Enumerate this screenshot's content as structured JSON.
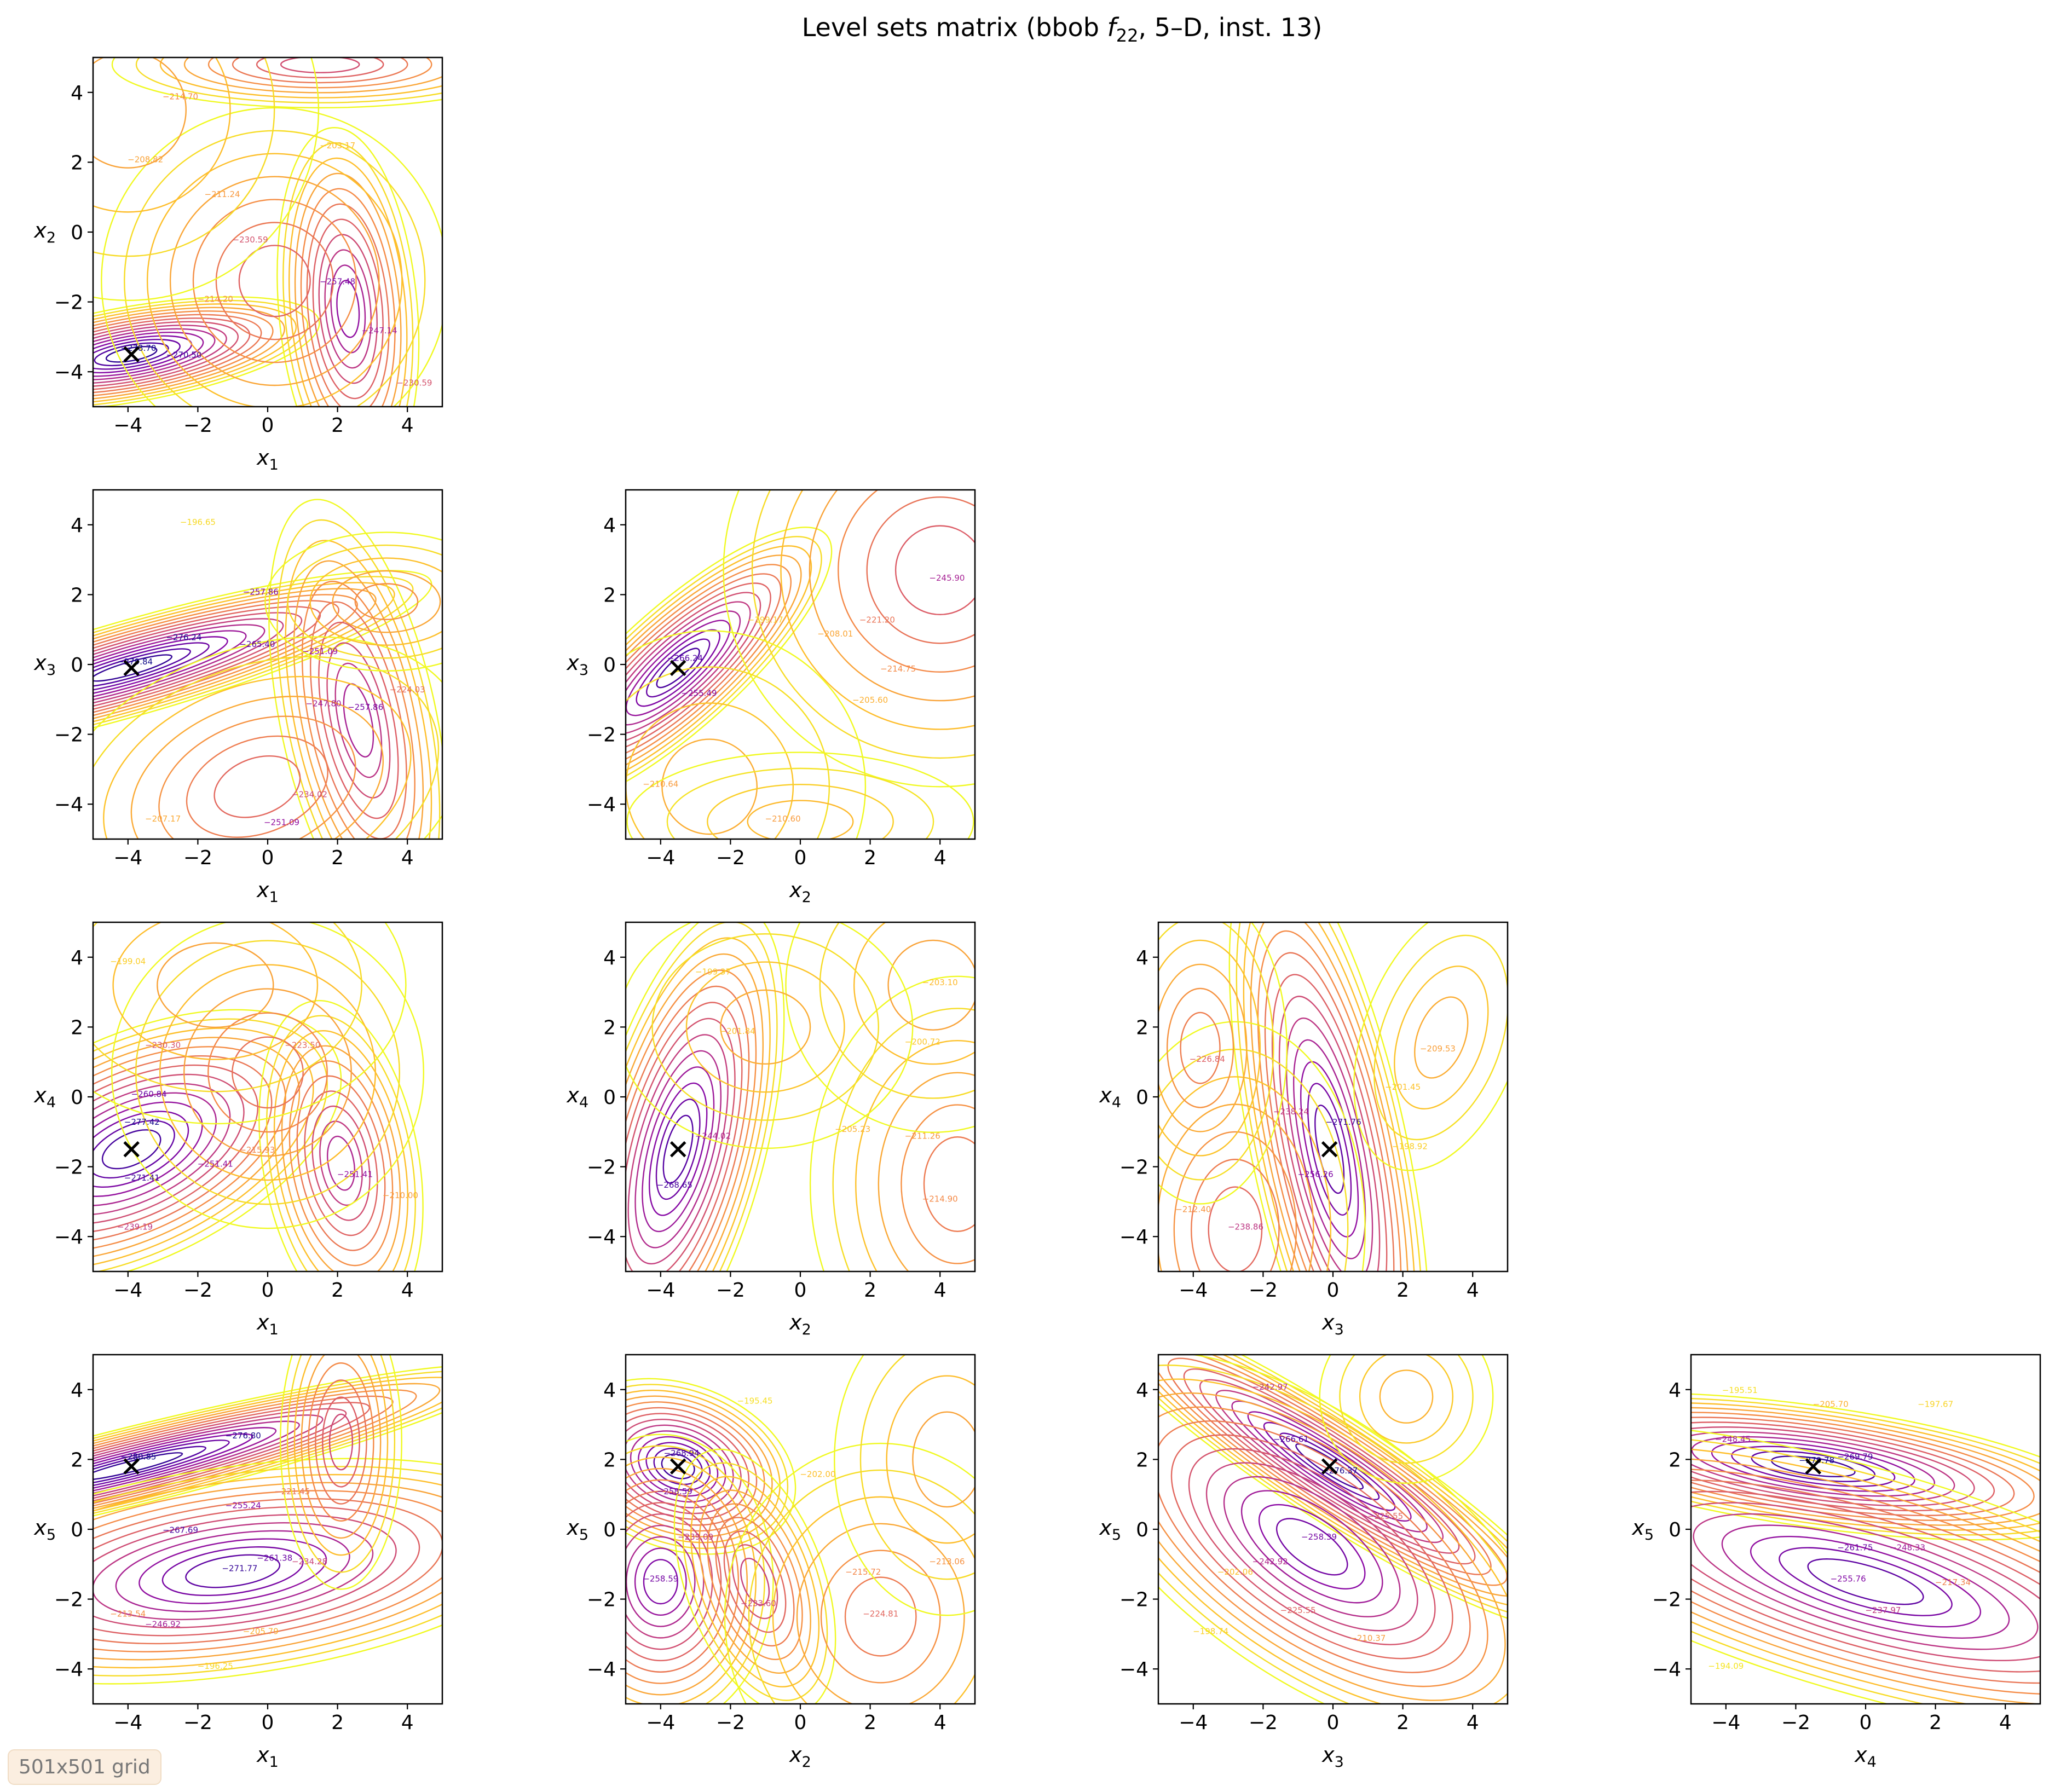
{
  "figure": {
    "title": "Level sets matrix (bbob f22, 5–D, inst. 13)",
    "title_prefix": "Level sets matrix (bbob ",
    "title_f": "f",
    "title_sub": "22",
    "title_suffix": ", 5–D, inst. 13)",
    "grid_note": "501x501 grid"
  },
  "chart_data": {
    "type": "contour",
    "colormap": "plasma",
    "axis_range": [
      -5,
      5
    ],
    "ticks": [
      -4,
      -2,
      0,
      2,
      4
    ],
    "tick_labels": [
      "−4",
      "−2",
      "0",
      "2",
      "4"
    ],
    "variables": [
      "x1",
      "x2",
      "x3",
      "x4",
      "x5"
    ],
    "optimum": [
      -3.9,
      -3.5,
      -0.1,
      -1.5,
      1.8
    ],
    "level_range": [
      -279,
      -190
    ],
    "panels": [
      {
        "x": "x1",
        "y": "x2",
        "xlabel": "x",
        "xsub": "1",
        "ylabel": "x",
        "ysub": "2",
        "peaks": [
          {
            "cx": -3.9,
            "cy": -3.5,
            "sx": 2.2,
            "sy": 0.55,
            "rot": 10,
            "depth": 89
          },
          {
            "cx": 2.3,
            "cy": -2.2,
            "sx": 0.8,
            "sy": 2.1,
            "rot": 5,
            "depth": 68
          },
          {
            "cx": 0.2,
            "cy": -1.4,
            "sx": 2.0,
            "sy": 2.0,
            "rot": 0,
            "depth": 42
          },
          {
            "cx": 1.5,
            "cy": 4.8,
            "sx": 2.4,
            "sy": 0.5,
            "rot": 0,
            "depth": 48
          },
          {
            "cx": -4.0,
            "cy": 3.5,
            "sx": 2.2,
            "sy": 2.2,
            "rot": 0,
            "depth": 25
          }
        ],
        "labels": [
          {
            "x": -3.7,
            "y": -3.4,
            "t": "−278.70"
          },
          {
            "x": -2.4,
            "y": -3.6,
            "t": "−270.50"
          },
          {
            "x": 2.0,
            "y": -1.5,
            "t": "−257.48"
          },
          {
            "x": 3.2,
            "y": -2.9,
            "t": "−247.14"
          },
          {
            "x": -0.5,
            "y": -0.3,
            "t": "−230.59"
          },
          {
            "x": -1.3,
            "y": 1.0,
            "t": "−211.24"
          },
          {
            "x": -3.5,
            "y": 2.0,
            "t": "−208.82"
          },
          {
            "x": -2.5,
            "y": 3.8,
            "t": "−214.70"
          },
          {
            "x": 2.0,
            "y": 2.4,
            "t": "−203.17"
          },
          {
            "x": -1.5,
            "y": -2.0,
            "t": "−214.20"
          },
          {
            "x": 4.2,
            "y": -4.4,
            "t": "−230.59"
          }
        ]
      },
      {
        "x": "x1",
        "y": "x3",
        "xlabel": "x",
        "xsub": "1",
        "ylabel": "x",
        "ysub": "3",
        "peaks": [
          {
            "cx": -3.9,
            "cy": -0.1,
            "sx": 3.6,
            "sy": 0.55,
            "rot": 16,
            "depth": 88
          },
          {
            "cx": 2.6,
            "cy": -1.6,
            "sx": 0.9,
            "sy": 2.6,
            "rot": 12,
            "depth": 62
          },
          {
            "cx": -0.3,
            "cy": -3.5,
            "sx": 2.5,
            "sy": 1.6,
            "rot": 20,
            "depth": 40
          },
          {
            "cx": 3.4,
            "cy": 1.8,
            "sx": 1.4,
            "sy": 0.8,
            "rot": 0,
            "depth": 30
          }
        ],
        "labels": [
          {
            "x": -3.8,
            "y": 0.0,
            "t": "−279.84"
          },
          {
            "x": -2.4,
            "y": 0.7,
            "t": "−276.24"
          },
          {
            "x": -0.3,
            "y": 0.5,
            "t": "−265.40"
          },
          {
            "x": -0.2,
            "y": 2.0,
            "t": "−257.86"
          },
          {
            "x": 1.5,
            "y": 0.3,
            "t": "−251.09"
          },
          {
            "x": 1.6,
            "y": -1.2,
            "t": "−247.80"
          },
          {
            "x": 2.8,
            "y": -1.3,
            "t": "−257.86"
          },
          {
            "x": 4.0,
            "y": -0.8,
            "t": "−224.03"
          },
          {
            "x": -3.0,
            "y": -4.5,
            "t": "−207.17"
          },
          {
            "x": 1.2,
            "y": -3.8,
            "t": "−234.02"
          },
          {
            "x": 0.4,
            "y": -4.6,
            "t": "−251.09"
          },
          {
            "x": -2.0,
            "y": 4.0,
            "t": "−196.65"
          }
        ]
      },
      {
        "x": "x2",
        "y": "x3",
        "xlabel": "x",
        "xsub": "2",
        "ylabel": "x",
        "ysub": "3",
        "peaks": [
          {
            "cx": -3.5,
            "cy": -0.1,
            "sx": 0.7,
            "sy": 2.3,
            "rot": -48,
            "depth": 84
          },
          {
            "cx": 4.0,
            "cy": 2.7,
            "sx": 2.5,
            "sy": 2.5,
            "rot": 0,
            "depth": 44
          },
          {
            "cx": -2.6,
            "cy": -3.5,
            "sx": 1.8,
            "sy": 1.8,
            "rot": 0,
            "depth": 22
          },
          {
            "cx": 0.0,
            "cy": -4.5,
            "sx": 2.0,
            "sy": 0.8,
            "rot": 0,
            "depth": 18
          }
        ],
        "labels": [
          {
            "x": -3.3,
            "y": 0.1,
            "t": "−266.24"
          },
          {
            "x": -2.9,
            "y": -0.9,
            "t": "−255.49"
          },
          {
            "x": 4.2,
            "y": 2.4,
            "t": "−245.90"
          },
          {
            "x": 2.2,
            "y": 1.2,
            "t": "−221.20"
          },
          {
            "x": 2.8,
            "y": -0.2,
            "t": "−214.75"
          },
          {
            "x": 1.0,
            "y": 0.8,
            "t": "−208.01"
          },
          {
            "x": -1.0,
            "y": 1.2,
            "t": "−199.17"
          },
          {
            "x": -4.0,
            "y": -3.5,
            "t": "−210.64"
          },
          {
            "x": 2.0,
            "y": -1.1,
            "t": "−205.60"
          },
          {
            "x": -0.5,
            "y": -4.5,
            "t": "−210.60"
          }
        ]
      },
      {
        "x": "x1",
        "y": "x4",
        "xlabel": "x",
        "xsub": "1",
        "ylabel": "x",
        "ysub": "4",
        "peaks": [
          {
            "cx": -3.9,
            "cy": -1.5,
            "sx": 2.6,
            "sy": 1.3,
            "rot": 25,
            "depth": 85
          },
          {
            "cx": 2.1,
            "cy": -1.9,
            "sx": 0.9,
            "sy": 1.9,
            "rot": 10,
            "depth": 60
          },
          {
            "cx": 0.0,
            "cy": 0.7,
            "sx": 1.8,
            "sy": 1.8,
            "rot": 0,
            "depth": 38
          },
          {
            "cx": -1.5,
            "cy": 3.2,
            "sx": 2.2,
            "sy": 1.6,
            "rot": 0,
            "depth": 25
          }
        ],
        "labels": [
          {
            "x": -3.6,
            "y": -0.8,
            "t": "−277.42"
          },
          {
            "x": -3.6,
            "y": -2.4,
            "t": "−271.41"
          },
          {
            "x": -3.4,
            "y": 0.0,
            "t": "−260.84"
          },
          {
            "x": -1.5,
            "y": -2.0,
            "t": "−251.41"
          },
          {
            "x": 2.5,
            "y": -2.3,
            "t": "−251.41"
          },
          {
            "x": -3.0,
            "y": 1.4,
            "t": "−230.30"
          },
          {
            "x": 1.0,
            "y": 1.4,
            "t": "−223.50"
          },
          {
            "x": -0.3,
            "y": -1.6,
            "t": "−215.93"
          },
          {
            "x": -4.0,
            "y": 3.8,
            "t": "−199.04"
          },
          {
            "x": -3.8,
            "y": -3.8,
            "t": "−239.19"
          },
          {
            "x": 3.8,
            "y": -2.9,
            "t": "−210.00"
          }
        ]
      },
      {
        "x": "x2",
        "y": "x4",
        "xlabel": "x",
        "xsub": "2",
        "ylabel": "x",
        "ysub": "4",
        "peaks": [
          {
            "cx": -3.5,
            "cy": -1.5,
            "sx": 1.0,
            "sy": 2.9,
            "rot": -15,
            "depth": 82
          },
          {
            "cx": 4.5,
            "cy": -2.5,
            "sx": 1.7,
            "sy": 2.4,
            "rot": 0,
            "depth": 35
          },
          {
            "cx": 3.8,
            "cy": 3.2,
            "sx": 1.7,
            "sy": 1.7,
            "rot": 0,
            "depth": 25
          },
          {
            "cx": -1.0,
            "cy": 2.0,
            "sx": 1.7,
            "sy": 1.4,
            "rot": 0,
            "depth": 22
          }
        ],
        "labels": [
          {
            "x": -3.6,
            "y": -2.6,
            "t": "−268.65"
          },
          {
            "x": -2.5,
            "y": -1.2,
            "t": "−244.02"
          },
          {
            "x": -1.8,
            "y": 1.8,
            "t": "−201.84"
          },
          {
            "x": -2.5,
            "y": 3.5,
            "t": "−199.37"
          },
          {
            "x": 3.5,
            "y": -1.2,
            "t": "−211.26"
          },
          {
            "x": 4.0,
            "y": -3.0,
            "t": "−214.90"
          },
          {
            "x": 4.0,
            "y": 3.2,
            "t": "−203.10"
          },
          {
            "x": 3.5,
            "y": 1.5,
            "t": "−200.72"
          },
          {
            "x": 1.5,
            "y": -1.0,
            "t": "−205.23"
          }
        ]
      },
      {
        "x": "x3",
        "y": "x4",
        "xlabel": "x",
        "xsub": "3",
        "ylabel": "x",
        "ysub": "4",
        "peaks": [
          {
            "cx": -0.1,
            "cy": -1.5,
            "sx": 0.9,
            "sy": 3.6,
            "rot": 12,
            "depth": 80
          },
          {
            "cx": -2.8,
            "cy": -3.8,
            "sx": 1.5,
            "sy": 2.4,
            "rot": 0,
            "depth": 40
          },
          {
            "cx": -3.8,
            "cy": 1.4,
            "sx": 1.0,
            "sy": 1.8,
            "rot": 0,
            "depth": 34
          },
          {
            "cx": 3.1,
            "cy": 1.7,
            "sx": 0.9,
            "sy": 1.6,
            "rot": -20,
            "depth": 22
          }
        ],
        "labels": [
          {
            "x": 0.3,
            "y": -0.8,
            "t": "−271.76"
          },
          {
            "x": -0.5,
            "y": -2.3,
            "t": "−256.26"
          },
          {
            "x": -1.2,
            "y": -0.5,
            "t": "−238.24"
          },
          {
            "x": -3.6,
            "y": 1.0,
            "t": "−226.84"
          },
          {
            "x": -2.5,
            "y": -3.8,
            "t": "−238.86"
          },
          {
            "x": -4.0,
            "y": -3.3,
            "t": "−212.40"
          },
          {
            "x": 3.0,
            "y": 1.3,
            "t": "−209.53"
          },
          {
            "x": 2.2,
            "y": -1.5,
            "t": "−198.92"
          },
          {
            "x": 2.0,
            "y": 0.2,
            "t": "−201.45"
          }
        ]
      },
      {
        "x": "x1",
        "y": "x5",
        "xlabel": "x",
        "xsub": "1",
        "ylabel": "x",
        "ysub": "5",
        "peaks": [
          {
            "cx": -3.9,
            "cy": 1.8,
            "sx": 4.5,
            "sy": 0.45,
            "rot": 14,
            "depth": 88
          },
          {
            "cx": -1.0,
            "cy": -1.2,
            "sx": 3.8,
            "sy": 1.2,
            "rot": 8,
            "depth": 80
          },
          {
            "cx": 2.1,
            "cy": 2.5,
            "sx": 0.7,
            "sy": 1.7,
            "rot": 0,
            "depth": 50
          }
        ],
        "labels": [
          {
            "x": -3.7,
            "y": 2.0,
            "t": "−280.85"
          },
          {
            "x": -0.7,
            "y": 2.6,
            "t": "−276.80"
          },
          {
            "x": -0.8,
            "y": -1.2,
            "t": "−271.77"
          },
          {
            "x": -2.5,
            "y": -0.1,
            "t": "−267.69"
          },
          {
            "x": 0.2,
            "y": -0.9,
            "t": "−261.38"
          },
          {
            "x": -0.7,
            "y": 0.6,
            "t": "−255.24"
          },
          {
            "x": -3.0,
            "y": -2.8,
            "t": "−246.92"
          },
          {
            "x": 1.2,
            "y": -1.0,
            "t": "−234.28"
          },
          {
            "x": 0.7,
            "y": 1.0,
            "t": "−221.45"
          },
          {
            "x": -4.0,
            "y": -2.5,
            "t": "−213.54"
          },
          {
            "x": -1.5,
            "y": -4.0,
            "t": "−196.25"
          },
          {
            "x": -0.2,
            "y": -3.0,
            "t": "−205.79"
          }
        ]
      },
      {
        "x": "x2",
        "y": "x5",
        "xlabel": "x",
        "xsub": "2",
        "ylabel": "x",
        "ysub": "5",
        "peaks": [
          {
            "cx": -3.5,
            "cy": 1.8,
            "sx": 1.4,
            "sy": 0.95,
            "rot": -20,
            "depth": 86
          },
          {
            "cx": -4.0,
            "cy": -1.5,
            "sx": 1.3,
            "sy": 1.7,
            "rot": 0,
            "depth": 72
          },
          {
            "cx": -1.3,
            "cy": -1.5,
            "sx": 0.8,
            "sy": 1.6,
            "rot": 20,
            "depth": 52
          },
          {
            "cx": 2.3,
            "cy": -2.5,
            "sx": 1.8,
            "sy": 2.0,
            "rot": 0,
            "depth": 35
          },
          {
            "cx": 4.2,
            "cy": 2.0,
            "sx": 1.3,
            "sy": 1.8,
            "rot": 0,
            "depth": 25
          }
        ],
        "labels": [
          {
            "x": -3.4,
            "y": 2.1,
            "t": "−268.94"
          },
          {
            "x": -3.6,
            "y": 1.0,
            "t": "−258.59"
          },
          {
            "x": -4.0,
            "y": -1.5,
            "t": "−258.59"
          },
          {
            "x": -3.0,
            "y": -0.3,
            "t": "−239.09"
          },
          {
            "x": -1.2,
            "y": -2.2,
            "t": "−233.60"
          },
          {
            "x": 2.3,
            "y": -2.5,
            "t": "−224.81"
          },
          {
            "x": 1.8,
            "y": -1.3,
            "t": "−215.72"
          },
          {
            "x": 4.2,
            "y": -1.0,
            "t": "−213.06"
          },
          {
            "x": 0.5,
            "y": 1.5,
            "t": "−202.00"
          },
          {
            "x": -1.3,
            "y": 3.6,
            "t": "−195.45"
          }
        ]
      },
      {
        "x": "x3",
        "y": "x5",
        "xlabel": "x",
        "xsub": "3",
        "ylabel": "x",
        "ysub": "5",
        "peaks": [
          {
            "cx": -0.1,
            "cy": 1.8,
            "sx": 3.3,
            "sy": 0.6,
            "rot": -33,
            "depth": 85
          },
          {
            "cx": -0.6,
            "cy": -0.5,
            "sx": 3.3,
            "sy": 1.5,
            "rot": -35,
            "depth": 75
          },
          {
            "cx": 2.1,
            "cy": 3.8,
            "sx": 1.0,
            "sy": 1.0,
            "rot": 0,
            "depth": 20
          }
        ],
        "labels": [
          {
            "x": 0.2,
            "y": 1.6,
            "t": "−276.37"
          },
          {
            "x": -1.2,
            "y": 2.5,
            "t": "−266.61"
          },
          {
            "x": -1.8,
            "y": 4.0,
            "t": "−242.97"
          },
          {
            "x": -0.4,
            "y": -0.3,
            "t": "−258.39"
          },
          {
            "x": -1.8,
            "y": -1.0,
            "t": "−242.92"
          },
          {
            "x": -1.0,
            "y": -2.4,
            "t": "−225.55"
          },
          {
            "x": 1.5,
            "y": 0.3,
            "t": "−225.55"
          },
          {
            "x": 1.0,
            "y": -3.2,
            "t": "−210.37"
          },
          {
            "x": -3.5,
            "y": -3.0,
            "t": "−198.74"
          },
          {
            "x": -2.8,
            "y": -1.3,
            "t": "−202.06"
          }
        ]
      },
      {
        "x": "x4",
        "y": "x5",
        "xlabel": "x",
        "xsub": "4",
        "ylabel": "x",
        "ysub": "5",
        "peaks": [
          {
            "cx": -1.5,
            "cy": 1.8,
            "sx": 3.5,
            "sy": 0.7,
            "rot": -8,
            "depth": 86
          },
          {
            "cx": 0.0,
            "cy": -1.5,
            "sx": 4.8,
            "sy": 1.3,
            "rot": -16,
            "depth": 80
          }
        ],
        "labels": [
          {
            "x": -1.4,
            "y": 1.9,
            "t": "−279.78"
          },
          {
            "x": -0.3,
            "y": 2.0,
            "t": "−269.79"
          },
          {
            "x": -3.8,
            "y": 2.5,
            "t": "−248.45"
          },
          {
            "x": -0.3,
            "y": -0.6,
            "t": "−261.75"
          },
          {
            "x": 1.2,
            "y": -0.6,
            "t": "−248.33"
          },
          {
            "x": -0.5,
            "y": -1.5,
            "t": "−255.76"
          },
          {
            "x": 0.5,
            "y": -2.4,
            "t": "−237.97"
          },
          {
            "x": 2.5,
            "y": -1.6,
            "t": "−217.34"
          },
          {
            "x": -1.0,
            "y": 3.5,
            "t": "−205.70"
          },
          {
            "x": 2.0,
            "y": 3.5,
            "t": "−197.67"
          },
          {
            "x": -4.0,
            "y": -4.0,
            "t": "−194.09"
          },
          {
            "x": -3.6,
            "y": 3.9,
            "t": "−195.51"
          }
        ]
      }
    ]
  }
}
